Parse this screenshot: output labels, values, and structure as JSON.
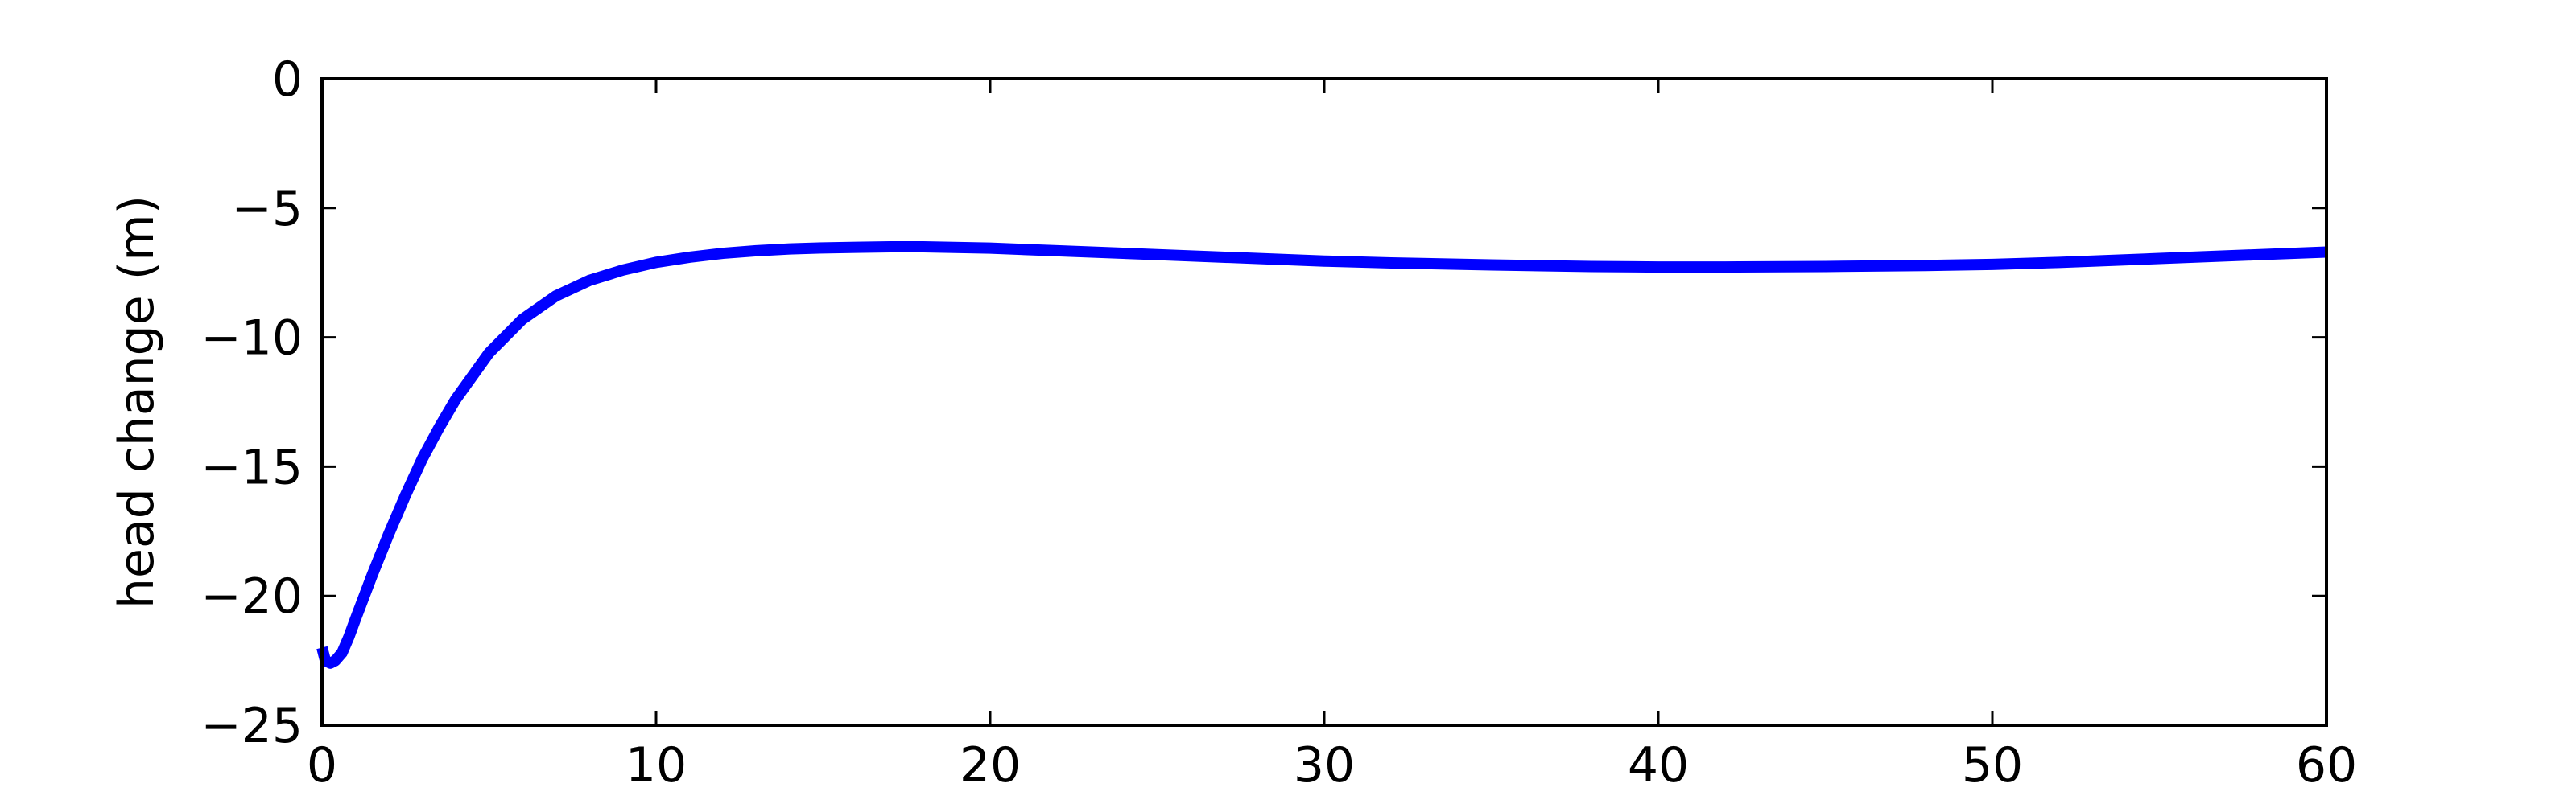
{
  "chart_data": {
    "type": "line",
    "title": "",
    "xlabel": "",
    "ylabel": "head change (m)",
    "xlim": [
      0,
      60
    ],
    "ylim": [
      -25,
      0
    ],
    "x_ticks": [
      0,
      10,
      20,
      30,
      40,
      50,
      60
    ],
    "y_ticks": [
      -25,
      -20,
      -15,
      -10,
      -5,
      0
    ],
    "x_tick_labels": [
      "0",
      "10",
      "20",
      "30",
      "40",
      "50",
      "60"
    ],
    "y_tick_labels": [
      "−25",
      "−20",
      "−15",
      "−10",
      "−5",
      "0"
    ],
    "grid": false,
    "legend": "none",
    "line_color": "#0000ff",
    "series": [
      {
        "x": [
          0,
          0.1,
          0.25,
          0.4,
          0.6,
          0.8,
          1,
          1.5,
          2,
          2.5,
          3,
          3.5,
          4,
          5,
          6,
          7,
          8,
          9,
          10,
          11,
          12,
          13,
          14,
          15,
          16,
          17,
          18,
          20,
          22,
          25,
          28,
          30,
          32,
          35,
          38,
          40,
          42,
          45,
          48,
          50,
          52,
          55,
          58,
          60
        ],
        "y": [
          -22.0,
          -22.5,
          -22.6,
          -22.5,
          -22.2,
          -21.6,
          -20.9,
          -19.2,
          -17.6,
          -16.1,
          -14.7,
          -13.5,
          -12.4,
          -10.6,
          -9.3,
          -8.4,
          -7.8,
          -7.4,
          -7.1,
          -6.9,
          -6.75,
          -6.65,
          -6.58,
          -6.54,
          -6.52,
          -6.5,
          -6.5,
          -6.55,
          -6.65,
          -6.8,
          -6.95,
          -7.05,
          -7.12,
          -7.2,
          -7.26,
          -7.28,
          -7.28,
          -7.26,
          -7.22,
          -7.18,
          -7.1,
          -6.95,
          -6.8,
          -6.7
        ]
      }
    ]
  }
}
